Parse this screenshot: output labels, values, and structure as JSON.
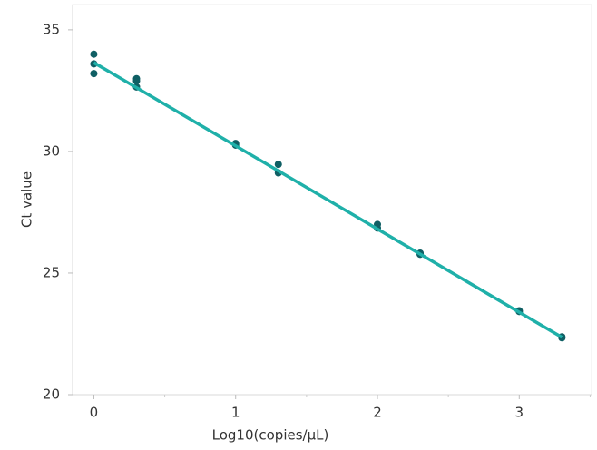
{
  "chart_data": {
    "type": "scatter",
    "xlabel": "Log10(copies/µL)",
    "ylabel": "Ct value",
    "xlim": [
      -0.15,
      3.51
    ],
    "ylim": [
      20,
      36.04
    ],
    "xticks": [
      0,
      1,
      2,
      3
    ],
    "xminor_ticks": [
      0.5,
      1.5,
      2.5,
      3.5
    ],
    "yticks": [
      20,
      25,
      30,
      35
    ],
    "series": [
      {
        "mode": "markers",
        "color": "#0f5f64",
        "x": [
          0,
          0,
          0,
          0.301,
          0.301,
          0.301,
          1,
          1,
          1.301,
          1.301,
          2,
          2,
          2.301,
          2.301,
          3,
          3,
          3.301,
          3.301
        ],
        "values": [
          34.0,
          33.6,
          33.2,
          32.99,
          32.9,
          32.65,
          30.33,
          30.26,
          29.47,
          29.12,
          27.0,
          26.85,
          25.82,
          25.77,
          23.45,
          23.42,
          22.38,
          22.34
        ]
      },
      {
        "mode": "line",
        "color": "#1fb0a9",
        "x": [
          0,
          3.301
        ],
        "values": [
          33.65,
          22.36
        ]
      }
    ]
  }
}
